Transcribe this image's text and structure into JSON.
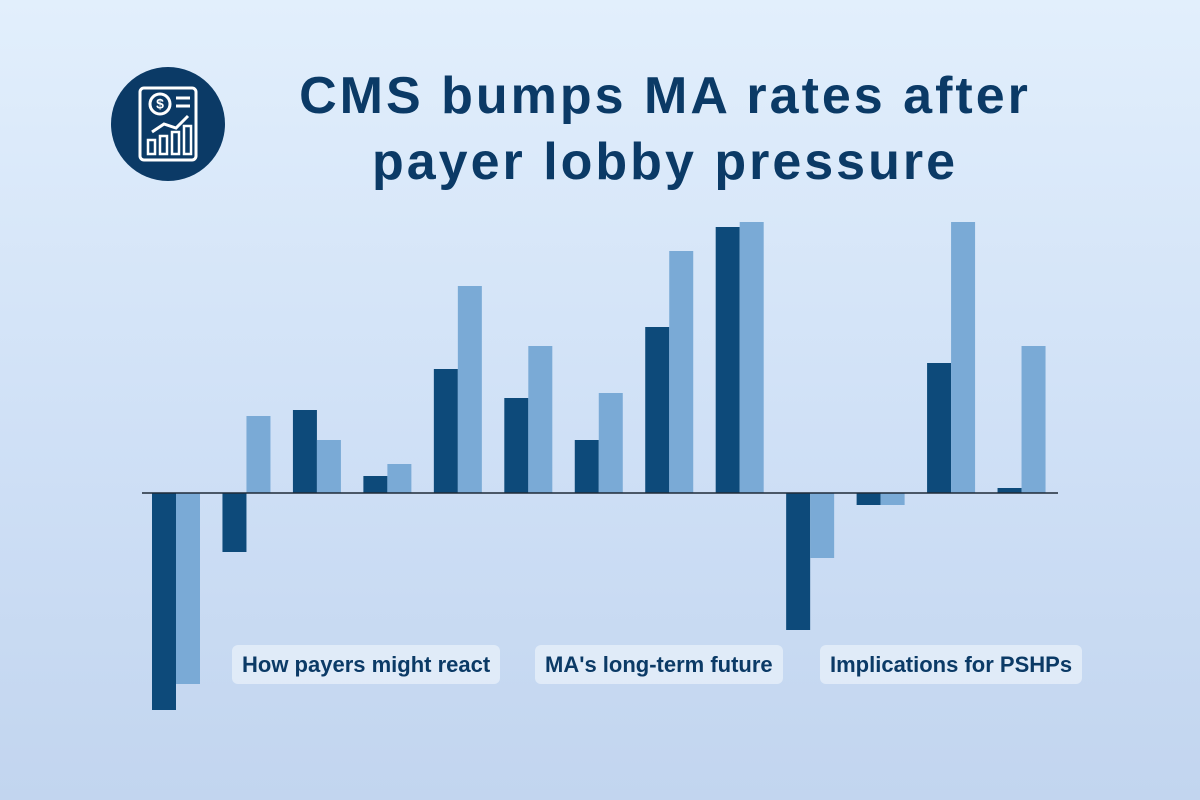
{
  "chart_data": {
    "type": "bar",
    "title": [
      "CMS bumps MA rates after",
      "payer lobby pressure"
    ],
    "annotations": [
      "How payers might react",
      "MA's long-term future",
      "Implications for PSHPs"
    ],
    "categories": [
      null,
      null,
      null,
      null,
      null,
      null,
      null,
      null,
      null,
      null,
      null,
      null,
      null
    ],
    "series": [
      {
        "color": "#0d4a7a",
        "values": [
          -21.7,
          -5.9,
          8.3,
          1.7,
          12.4,
          9.5,
          5.3,
          16.6,
          26.6,
          -13.7,
          -1.2,
          13.0,
          0.5
        ]
      },
      {
        "color": "#7aaad6",
        "values": [
          -19.1,
          7.7,
          5.3,
          2.9,
          20.7,
          14.7,
          10.0,
          24.2,
          27.1,
          -6.5,
          -1.2,
          27.1,
          14.7
        ]
      }
    ],
    "ylim": [
      -21.7,
      27.1
    ],
    "grid": false
  }
}
